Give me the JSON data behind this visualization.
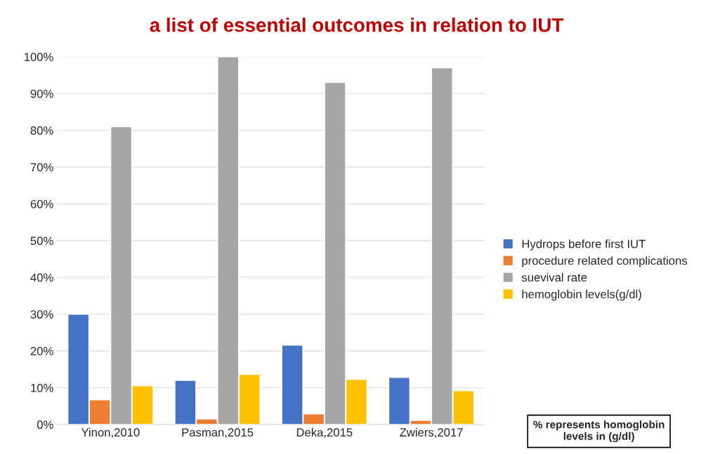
{
  "chart_data": {
    "type": "bar",
    "title": "a list of essential outcomes in relation to IUT",
    "categories": [
      "Yinon,2010",
      "Pasman,2015",
      "Deka,2015",
      "Zwiers,2017"
    ],
    "series": [
      {
        "name": "Hydrops before first IUT",
        "color": "#4472c4",
        "values": [
          30,
          12,
          21.6,
          12.8
        ]
      },
      {
        "name": "procedure related complications",
        "color": "#ed7d31",
        "values": [
          6.7,
          1.5,
          2.9,
          1.1
        ]
      },
      {
        "name": "suevival rate",
        "color": "#a5a5a5",
        "values": [
          81,
          100,
          93,
          97
        ]
      },
      {
        "name": "hemoglobin levels(g/dl)",
        "color": "#ffc000",
        "values": [
          10.5,
          13.6,
          12.3,
          9.2
        ]
      }
    ],
    "ylim": [
      0,
      100
    ],
    "yticks": [
      {
        "value": 0,
        "label": "0%"
      },
      {
        "value": 10,
        "label": "10%"
      },
      {
        "value": 20,
        "label": "20%"
      },
      {
        "value": 30,
        "label": "30%"
      },
      {
        "value": 40,
        "label": "40%"
      },
      {
        "value": 50,
        "label": "50%"
      },
      {
        "value": 60,
        "label": "60%"
      },
      {
        "value": 70,
        "label": "70%"
      },
      {
        "value": 80,
        "label": "80%"
      },
      {
        "value": 90,
        "label": "90%"
      },
      {
        "value": 100,
        "label": "100%"
      }
    ],
    "grid": "y",
    "legend": "right",
    "annotations": [
      "% represents homoglobin\nlevels in (g/dl)"
    ]
  }
}
